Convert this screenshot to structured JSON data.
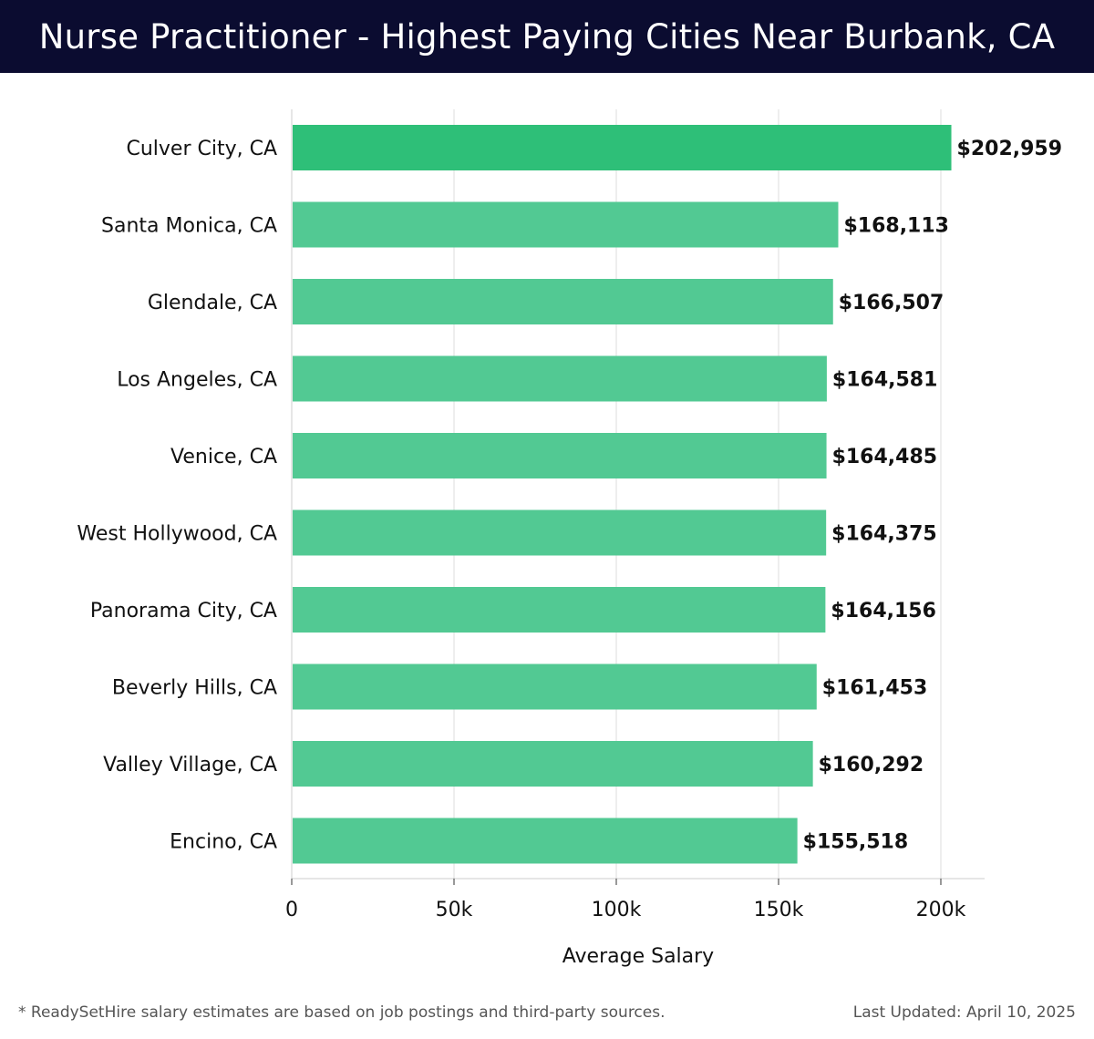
{
  "header": {
    "title": "Nurse Practitioner - Highest Paying Cities Near Burbank, CA"
  },
  "chart_data": {
    "type": "bar",
    "orientation": "horizontal",
    "title": "Nurse Practitioner - Highest Paying Cities Near Burbank, CA",
    "xlabel": "Average Salary",
    "ylabel": "",
    "xlim": [
      0,
      213000
    ],
    "xticks": [
      0,
      50000,
      100000,
      150000,
      200000
    ],
    "xtick_labels": [
      "0",
      "50k",
      "100k",
      "150k",
      "200k"
    ],
    "grid": "vertical",
    "categories": [
      "Culver City, CA",
      "Santa Monica, CA",
      "Glendale, CA",
      "Los Angeles, CA",
      "Venice, CA",
      "West Hollywood, CA",
      "Panorama City, CA",
      "Beverly Hills, CA",
      "Valley Village, CA",
      "Encino, CA"
    ],
    "values": [
      202959,
      168113,
      166507,
      164581,
      164485,
      164375,
      164156,
      161453,
      160292,
      155518
    ],
    "value_labels": [
      "$202,959",
      "$168,113",
      "$166,507",
      "$164,581",
      "$164,485",
      "$164,375",
      "$164,156",
      "$161,453",
      "$160,292",
      "$155,518"
    ],
    "colors": {
      "top_bar": "#2ebf78",
      "bar": "#52c993",
      "grid": "#dddddd",
      "axis": "#cccccc"
    }
  },
  "footer": {
    "note": "* ReadySetHire salary estimates are based on job postings and third-party sources.",
    "updated": "Last Updated: April 10, 2025"
  }
}
